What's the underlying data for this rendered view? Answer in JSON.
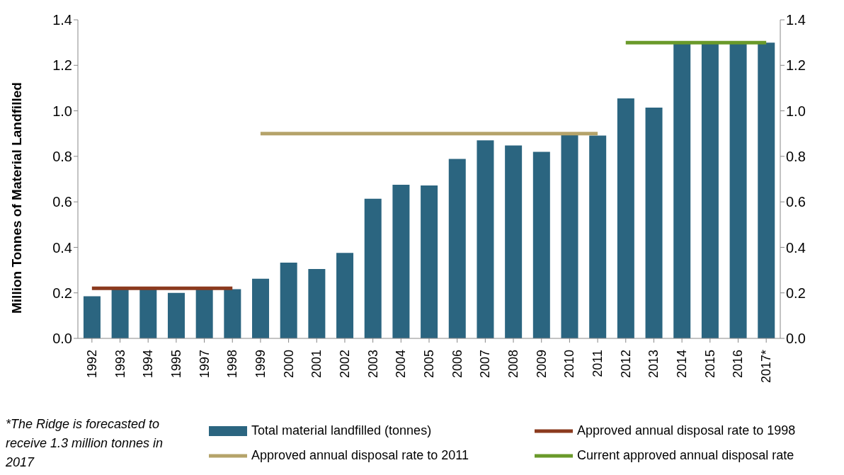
{
  "chart_data": {
    "type": "bar",
    "ylabel": "Million Tonnes of Material Landfilled",
    "categories": [
      "1992",
      "1993",
      "1994",
      "1995",
      "1997",
      "1998",
      "1999",
      "2000",
      "2001",
      "2002",
      "2003",
      "2004",
      "2005",
      "2006",
      "2007",
      "2008",
      "2009",
      "2010",
      "2011",
      "2012",
      "2013",
      "2014",
      "2015",
      "2016",
      "2017*"
    ],
    "series": [
      {
        "name": "Total material landfilled (tonnes)",
        "color": "#2b6580",
        "values": [
          0.185,
          0.216,
          0.216,
          0.2,
          0.216,
          0.216,
          0.262,
          0.333,
          0.305,
          0.376,
          0.614,
          0.675,
          0.672,
          0.789,
          0.87,
          0.848,
          0.82,
          0.9,
          0.891,
          1.055,
          1.014,
          1.3,
          1.3,
          1.3,
          1.3
        ]
      },
      {
        "name": "Approved annual disposal rate to 1998",
        "type": "line",
        "color": "#8b3a1e",
        "values": [
          0.22,
          0.22,
          0.22,
          0.22,
          0.22,
          0.22,
          null,
          null,
          null,
          null,
          null,
          null,
          null,
          null,
          null,
          null,
          null,
          null,
          null,
          null,
          null,
          null,
          null,
          null,
          null
        ]
      },
      {
        "name": "Approved annual disposal rate to 2011",
        "type": "line",
        "color": "#b5a36a",
        "values": [
          null,
          null,
          null,
          null,
          null,
          null,
          0.9,
          0.9,
          0.9,
          0.9,
          0.9,
          0.9,
          0.9,
          0.9,
          0.9,
          0.9,
          0.9,
          0.9,
          0.9,
          null,
          null,
          null,
          null,
          null,
          null
        ]
      },
      {
        "name": "Current approved annual disposal rate",
        "type": "line",
        "color": "#6a9a2a",
        "values": [
          null,
          null,
          null,
          null,
          null,
          null,
          null,
          null,
          null,
          null,
          null,
          null,
          null,
          null,
          null,
          null,
          null,
          null,
          null,
          1.3,
          1.3,
          1.3,
          1.3,
          1.3,
          1.3
        ]
      }
    ],
    "ylim": [
      0,
      1.4
    ],
    "yticks": [
      {
        "value": 0,
        "label": "0.0"
      },
      {
        "value": 0.2,
        "label": "0.2"
      },
      {
        "value": 0.4,
        "label": "0.4"
      },
      {
        "value": 0.6,
        "label": "0.6"
      },
      {
        "value": 0.8,
        "label": "0.8"
      },
      {
        "value": 1,
        "label": "1.0"
      },
      {
        "value": 1.2,
        "label": "1.2"
      },
      {
        "value": 1.4,
        "label": "1.4"
      }
    ],
    "y2lim": [
      0,
      1.4
    ],
    "y2ticks": [
      {
        "value": 0,
        "label": "0.0"
      },
      {
        "value": 0.2,
        "label": "0.2"
      },
      {
        "value": 0.4,
        "label": "0.4"
      },
      {
        "value": 0.6,
        "label": "0.6"
      },
      {
        "value": 0.8,
        "label": "0.8"
      },
      {
        "value": 1,
        "label": "1.0"
      },
      {
        "value": 1.2,
        "label": "1.2"
      },
      {
        "value": 1.4,
        "label": "1.4"
      }
    ],
    "grid": false,
    "legend": "bottom",
    "marker": "none",
    "line_style": "solid",
    "annotations": [
      "*The Ridge is forecasted to receive 1.3 million tonnes in 2017"
    ]
  }
}
